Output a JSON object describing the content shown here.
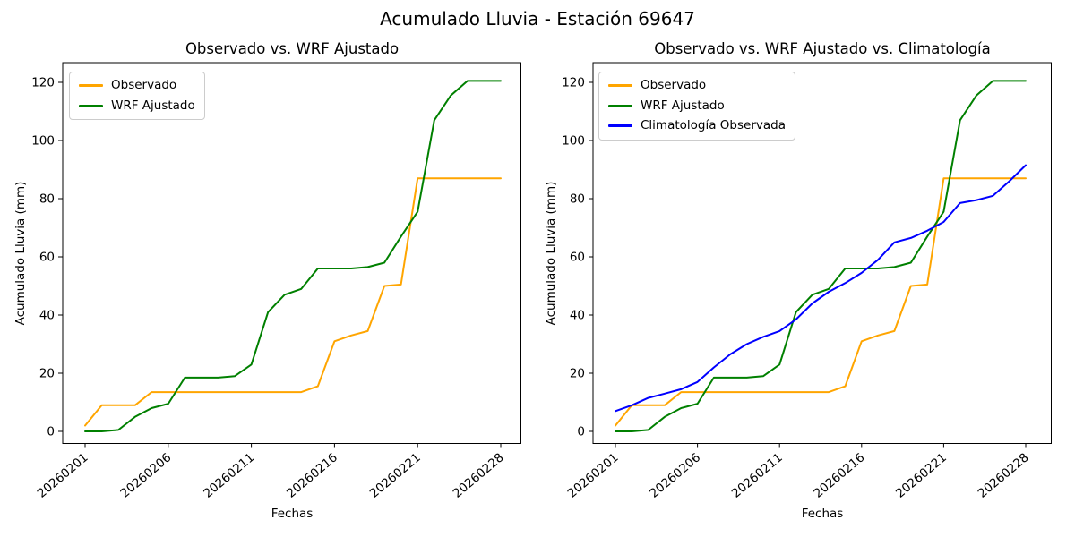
{
  "figure": {
    "title": "Acumulado Lluvia - Estación 69647"
  },
  "chart_data": [
    {
      "id": "observado-vs-wrf",
      "type": "line",
      "title": "Observado vs. WRF Ajustado",
      "xlabel": "Fechas",
      "ylabel": "Acumulado Lluvia (mm)",
      "ylim": [
        -4,
        127
      ],
      "y_ticks": [
        0,
        20,
        40,
        60,
        80,
        100,
        120
      ],
      "x_tick_labels": [
        "20260201",
        "20260206",
        "20260211",
        "20260216",
        "20260221",
        "20260228"
      ],
      "x_tick_indices": [
        0,
        5,
        10,
        15,
        20,
        25
      ],
      "n_points": 26,
      "grid": false,
      "legend_loc": "upper left",
      "series": [
        {
          "name": "Observado",
          "color": "#ffa500",
          "values": [
            2,
            9,
            9,
            9,
            13.5,
            13.5,
            13.5,
            13.5,
            13.5,
            13.5,
            13.5,
            13.5,
            13.5,
            13.5,
            15.5,
            31,
            33,
            34.5,
            50,
            50.5,
            87,
            87,
            87,
            87,
            87,
            87
          ]
        },
        {
          "name": "WRF Ajustado",
          "color": "#008000",
          "values": [
            0,
            0,
            0.5,
            5,
            8,
            9.5,
            18.5,
            18.5,
            18.5,
            19,
            23,
            41,
            47,
            49,
            56,
            56,
            56,
            56.5,
            58,
            67,
            75.5,
            107,
            115.5,
            120.5,
            120.5,
            120.5
          ]
        }
      ]
    },
    {
      "id": "observado-vs-wrf-vs-climatologia",
      "type": "line",
      "title": "Observado vs. WRF Ajustado vs. Climatología",
      "xlabel": "Fechas",
      "ylabel": "Acumulado Lluvia (mm)",
      "ylim": [
        -4,
        127
      ],
      "y_ticks": [
        0,
        20,
        40,
        60,
        80,
        100,
        120
      ],
      "x_tick_labels": [
        "20260201",
        "20260206",
        "20260211",
        "20260216",
        "20260221",
        "20260228"
      ],
      "x_tick_indices": [
        0,
        5,
        10,
        15,
        20,
        25
      ],
      "n_points": 26,
      "grid": false,
      "legend_loc": "upper left",
      "series": [
        {
          "name": "Observado",
          "color": "#ffa500",
          "values": [
            2,
            9,
            9,
            9,
            13.5,
            13.5,
            13.5,
            13.5,
            13.5,
            13.5,
            13.5,
            13.5,
            13.5,
            13.5,
            15.5,
            31,
            33,
            34.5,
            50,
            50.5,
            87,
            87,
            87,
            87,
            87,
            87
          ]
        },
        {
          "name": "WRF Ajustado",
          "color": "#008000",
          "values": [
            0,
            0,
            0.5,
            5,
            8,
            9.5,
            18.5,
            18.5,
            18.5,
            19,
            23,
            41,
            47,
            49,
            56,
            56,
            56,
            56.5,
            58,
            67,
            75.5,
            107,
            115.5,
            120.5,
            120.5,
            120.5
          ]
        },
        {
          "name": "Climatología Observada",
          "color": "#0000ff",
          "values": [
            7,
            9,
            11.5,
            13,
            14.5,
            17,
            22,
            26.5,
            30,
            32.5,
            34.5,
            38.5,
            44,
            48,
            51,
            54.5,
            59,
            65,
            66.5,
            69,
            72,
            78.5,
            79.5,
            81,
            86,
            91.5
          ]
        }
      ]
    }
  ]
}
